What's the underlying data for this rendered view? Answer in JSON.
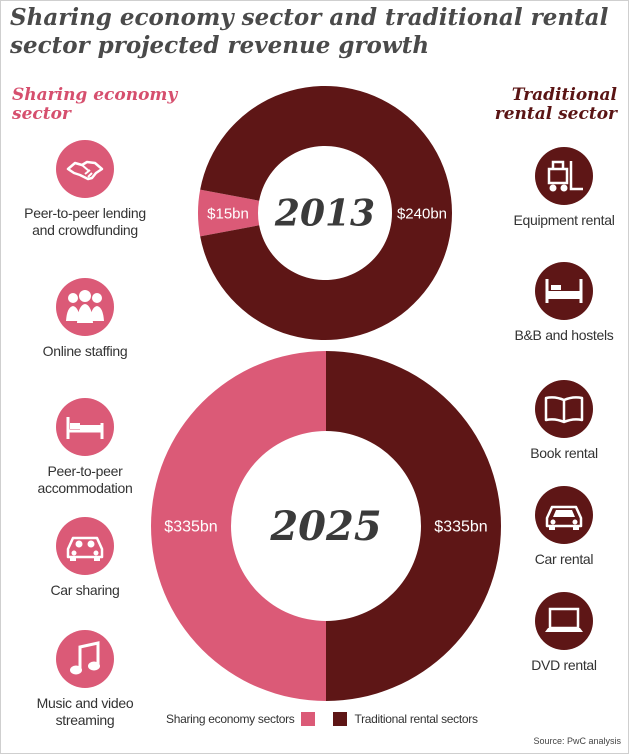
{
  "title": "Sharing economy sector and traditional rental sector projected revenue growth",
  "left_heading": "Sharing economy sector",
  "right_heading": "Traditional rental sector",
  "colors": {
    "sharing": "#db5a77",
    "traditional": "#5e1616"
  },
  "left_items": [
    {
      "label": "Peer-to-peer lending and crowdfunding",
      "icon": "handshake-icon"
    },
    {
      "label": "Online staffing",
      "icon": "people-icon"
    },
    {
      "label": "Peer-to-peer accommodation",
      "icon": "bed-icon"
    },
    {
      "label": "Car sharing",
      "icon": "car-icon"
    },
    {
      "label": "Music and video streaming",
      "icon": "music-note-icon"
    }
  ],
  "right_items": [
    {
      "label": "Equipment rental",
      "icon": "forklift-icon"
    },
    {
      "label": "B&B and hostels",
      "icon": "bed-icon"
    },
    {
      "label": "Book rental",
      "icon": "open-book-icon"
    },
    {
      "label": "Car rental",
      "icon": "car-icon"
    },
    {
      "label": "DVD rental",
      "icon": "laptop-icon"
    }
  ],
  "chart_data": [
    {
      "type": "pie",
      "year": "2013",
      "categories": [
        "Sharing economy sectors",
        "Traditional rental sectors"
      ],
      "values": [
        15,
        240
      ],
      "unit": "$bn",
      "labels": [
        "$15bn",
        "$240bn"
      ]
    },
    {
      "type": "pie",
      "year": "2025",
      "categories": [
        "Sharing economy sectors",
        "Traditional rental sectors"
      ],
      "values": [
        335,
        335
      ],
      "unit": "$bn",
      "labels": [
        "$335bn",
        "$335bn"
      ]
    }
  ],
  "legend": {
    "sharing": "Sharing economy sectors",
    "traditional": "Traditional rental sectors"
  },
  "source": "Source: PwC analysis"
}
